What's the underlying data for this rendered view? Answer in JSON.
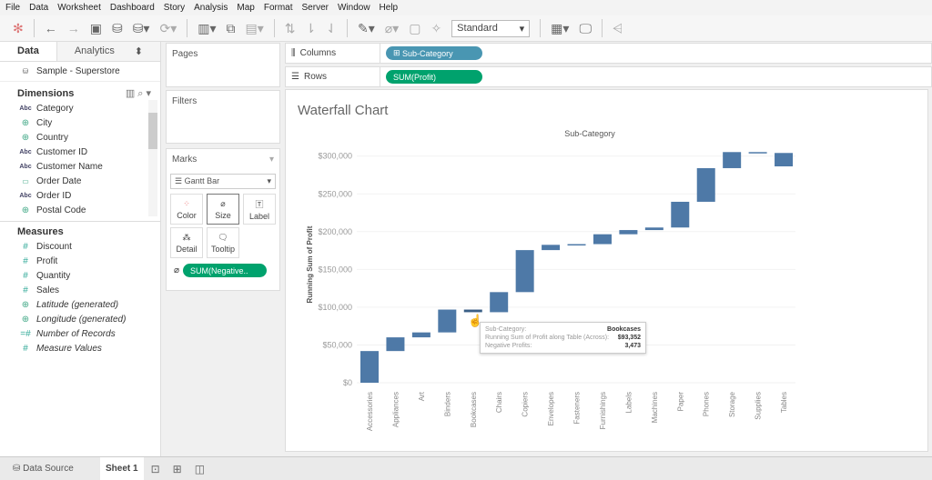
{
  "menu": [
    "File",
    "Data",
    "Worksheet",
    "Dashboard",
    "Story",
    "Analysis",
    "Map",
    "Format",
    "Server",
    "Window",
    "Help"
  ],
  "toolbar": {
    "fit_value": "Standard"
  },
  "datapane": {
    "tab_data": "Data",
    "tab_analytics": "Analytics",
    "datasource": "Sample - Superstore",
    "dimensions_header": "Dimensions",
    "dimensions": [
      {
        "icon": "abc",
        "label": "Category"
      },
      {
        "icon": "globe",
        "label": "City"
      },
      {
        "icon": "globe",
        "label": "Country"
      },
      {
        "icon": "abc",
        "label": "Customer ID"
      },
      {
        "icon": "abc",
        "label": "Customer Name"
      },
      {
        "icon": "calendar",
        "label": "Order Date"
      },
      {
        "icon": "abc",
        "label": "Order ID"
      },
      {
        "icon": "globe",
        "label": "Postal Code"
      }
    ],
    "measures_header": "Measures",
    "measures": [
      {
        "icon": "#",
        "label": "Discount",
        "italic": false
      },
      {
        "icon": "#",
        "label": "Profit",
        "italic": false
      },
      {
        "icon": "#",
        "label": "Quantity",
        "italic": false
      },
      {
        "icon": "#",
        "label": "Sales",
        "italic": false
      },
      {
        "icon": "globe",
        "label": "Latitude (generated)",
        "italic": true
      },
      {
        "icon": "globe",
        "label": "Longitude (generated)",
        "italic": true
      },
      {
        "icon": "=#",
        "label": "Number of Records",
        "italic": true
      },
      {
        "icon": "#",
        "label": "Measure Values",
        "italic": true
      }
    ]
  },
  "cards": {
    "pages": "Pages",
    "filters": "Filters",
    "marks": "Marks",
    "mark_type": "Gantt Bar",
    "color": "Color",
    "size": "Size",
    "label": "Label",
    "detail": "Detail",
    "tooltip": "Tooltip",
    "size_pill": "SUM(Negative.."
  },
  "shelves": {
    "columns_label": "Columns",
    "columns_pill": "Sub-Category",
    "rows_label": "Rows",
    "rows_pill": "SUM(Profit)"
  },
  "colors": {
    "bar": "#4e79a7",
    "dimension_pill": "#4996b2",
    "measure_pill": "#00a26d"
  },
  "view": {
    "sheet_title": "Waterfall Chart"
  },
  "tooltip": {
    "k1": "Sub-Category:",
    "v1": "Bookcases",
    "k2": "Running Sum of Profit along Table (Across):",
    "v2": "$93,352",
    "k3": "Negative Profits:",
    "v3": "3,473"
  },
  "chart_data": {
    "type": "bar",
    "subtype": "waterfall (gantt)",
    "column_header": "Sub-Category",
    "ylabel": "Running Sum of Profit",
    "ylim": [
      0,
      300000
    ],
    "yticks": [
      "$0",
      "$50,000",
      "$100,000",
      "$150,000",
      "$200,000",
      "$250,000",
      "$300,000"
    ],
    "categories": [
      "Accessories",
      "Appliances",
      "Art",
      "Binders",
      "Bookcases",
      "Chairs",
      "Copiers",
      "Envelopes",
      "Fasteners",
      "Furnishings",
      "Labels",
      "Machines",
      "Paper",
      "Phones",
      "Storage",
      "Supplies",
      "Tables"
    ],
    "profit": [
      41937,
      18138,
      6528,
      30222,
      -3473,
      26590,
      55618,
      6964,
      950,
      13059,
      5546,
      3385,
      34054,
      44516,
      21279,
      -1189,
      -17725
    ],
    "running_sum": [
      41937,
      60075,
      66603,
      96825,
      93352,
      119942,
      175560,
      182524,
      183474,
      196533,
      202079,
      205464,
      239518,
      284034,
      305313,
      304124,
      286399
    ],
    "grid": true
  },
  "bottom": {
    "datasource_tab": "Data Source",
    "sheet_tab": "Sheet 1"
  }
}
